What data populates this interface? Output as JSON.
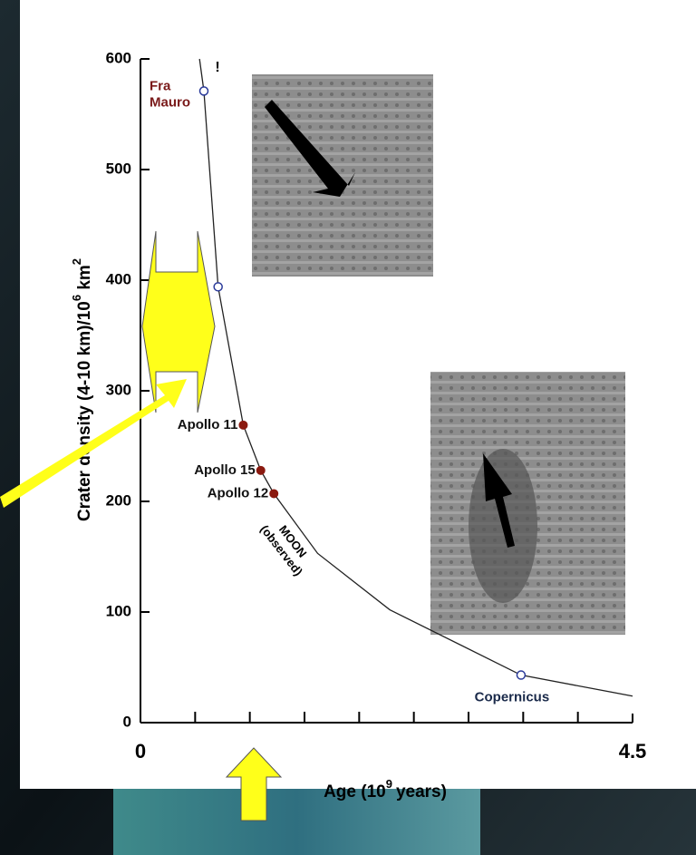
{
  "chart_data": {
    "type": "line",
    "xlabel": [
      "Age (10",
      "9",
      "years)"
    ],
    "ylabel": [
      "Crater density  (4-10 km)/10",
      "6",
      " km",
      "2"
    ],
    "xlim": [
      0,
      4.5
    ],
    "ylim": [
      0,
      600
    ],
    "xticks": [
      0,
      4.5
    ],
    "xminorticks": [
      0.5,
      1,
      1.5,
      2,
      2.5,
      3,
      3.5,
      4
    ],
    "yticks": [
      0,
      100,
      200,
      300,
      400,
      500,
      600
    ],
    "curve": {
      "color": "#222222",
      "x": [
        0.54,
        0.58,
        0.71,
        0.94,
        1.1,
        1.22,
        1.62,
        2.28,
        3.48,
        4.5
      ],
      "y": [
        600,
        571,
        394,
        269,
        228,
        207,
        153,
        102,
        43,
        24
      ]
    },
    "curve_label": [
      "MOON",
      "(observed)"
    ],
    "points": [
      {
        "label_lines": [
          "Fra",
          "Mauro"
        ],
        "x": 0.58,
        "y": 571,
        "style": "open",
        "color": "#2a3a9a",
        "label_color": "#7a1a1a"
      },
      {
        "x": 0.71,
        "y": 394,
        "style": "open",
        "color": "#2a3a9a"
      },
      {
        "label_lines": [
          "Apollo 11"
        ],
        "x": 0.94,
        "y": 269,
        "style": "filled",
        "color": "#8b1a10",
        "label_color": "#111111"
      },
      {
        "label_lines": [
          "Apollo 15"
        ],
        "x": 1.1,
        "y": 228,
        "style": "filled",
        "color": "#8b1a10",
        "label_color": "#111111"
      },
      {
        "label_lines": [
          "Apollo 12"
        ],
        "x": 1.22,
        "y": 207,
        "style": "filled",
        "color": "#8b1a10",
        "label_color": "#111111"
      },
      {
        "label_lines": [
          "Copernicus"
        ],
        "x": 3.48,
        "y": 43,
        "style": "open",
        "color": "#2a3a9a",
        "label_color": "#1a2a4a"
      }
    ],
    "mark_text": "!"
  }
}
